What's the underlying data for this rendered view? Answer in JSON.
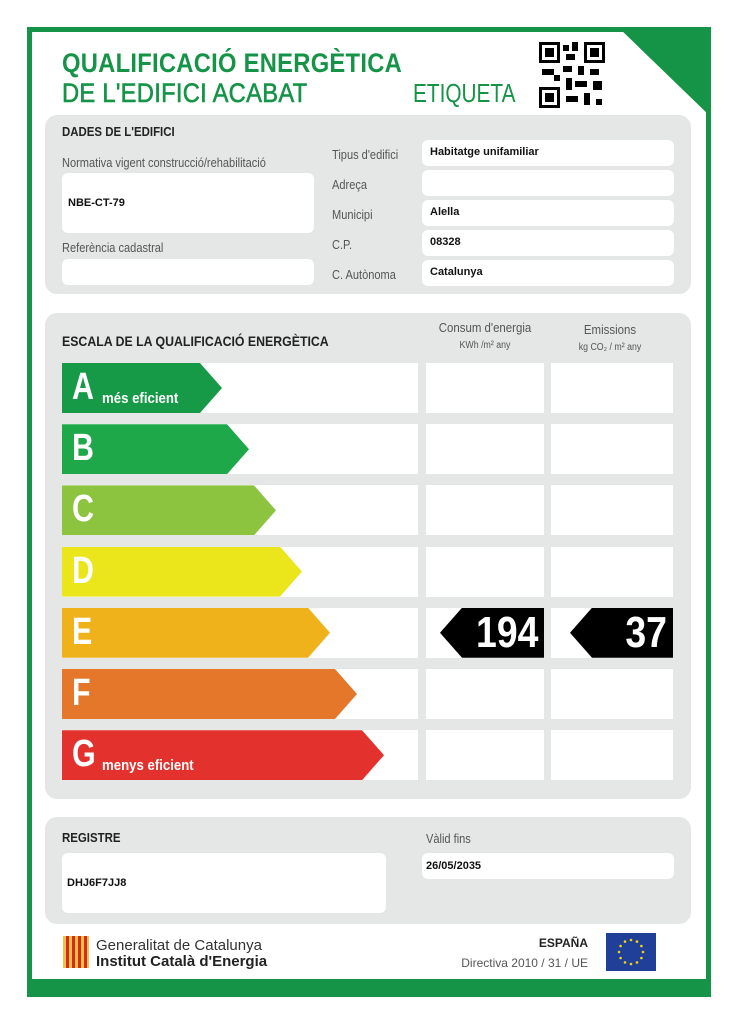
{
  "header": {
    "title_line1": "QUALIFICACIÓ ENERGÈTICA",
    "title_line2": "DE L'EDIFICI ACABAT",
    "label": "ETIQUETA",
    "qr_icon": "qr-code-icon"
  },
  "building": {
    "heading": "DADES DE L'EDIFICI",
    "normativa_label": "Normativa vigent construcció/rehabilitació",
    "normativa_value": "NBE-CT-79",
    "cadastral_label": "Referència cadastral",
    "cadastral_value": "",
    "fields": [
      {
        "label": "Tipus d'edifici",
        "value": "Habitatge unifamiliar"
      },
      {
        "label": "Adreça",
        "value": ""
      },
      {
        "label": "Municipi",
        "value": "Alella"
      },
      {
        "label": "C.P.",
        "value": "08328"
      },
      {
        "label": "C. Autònoma",
        "value": "Catalunya"
      }
    ]
  },
  "scale": {
    "heading": "ESCALA DE LA QUALIFICACIÓ ENERGÈTICA",
    "consum_label": "Consum d'energia",
    "consum_unit": "KWh /m² any",
    "emissions_label": "Emissions",
    "emissions_unit": "kg CO₂ / m² any",
    "classes": [
      {
        "letter": "A",
        "sub": "més eficient",
        "color": "#169a48"
      },
      {
        "letter": "B",
        "sub": "",
        "color": "#1fa84a"
      },
      {
        "letter": "C",
        "sub": "",
        "color": "#8cc43f"
      },
      {
        "letter": "D",
        "sub": "",
        "color": "#ebe61c"
      },
      {
        "letter": "E",
        "sub": "",
        "color": "#f0b21a"
      },
      {
        "letter": "F",
        "sub": "",
        "color": "#e5772a"
      },
      {
        "letter": "G",
        "sub": "menys eficient",
        "color": "#e3312d"
      }
    ],
    "rating_class": "E",
    "consum_value": "194",
    "emissions_value": "37"
  },
  "registre": {
    "heading": "REGISTRE",
    "value": "DHJ6F7JJ8",
    "valid_label": "Vàlid fins",
    "valid_value": "26/05/2035"
  },
  "footer": {
    "org1": "Generalitat de Catalunya",
    "org2": "Institut Català d'Energia",
    "country": "ESPAÑA",
    "directive": "Directiva 2010 / 31 / UE"
  }
}
